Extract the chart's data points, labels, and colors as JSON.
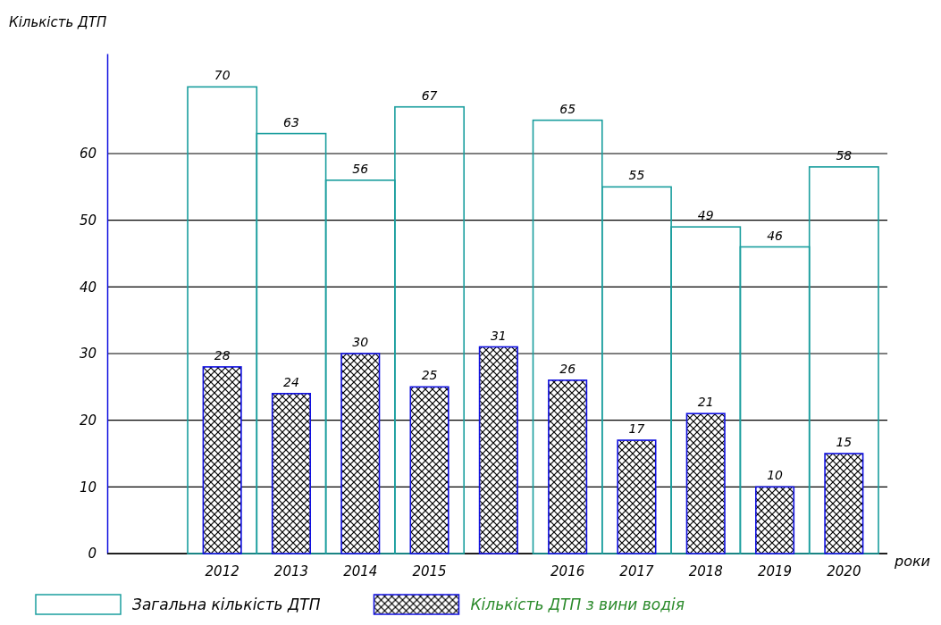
{
  "chart_data": {
    "type": "bar",
    "xlabel": "роки",
    "ylabel": "Кількість ДТП",
    "categories": [
      "2012",
      "2013",
      "2014",
      "2015",
      null,
      "2016",
      "2017",
      "2018",
      "2019",
      "2020"
    ],
    "series": [
      {
        "name": "Загальна кількість ДТП",
        "color": "#1a9e9e",
        "values": [
          70,
          63,
          56,
          67,
          null,
          65,
          55,
          49,
          46,
          58
        ]
      },
      {
        "name": "Кількість ДТП з вини водія",
        "color": "#1010e0",
        "values": [
          28,
          24,
          30,
          25,
          31,
          26,
          17,
          21,
          10,
          15
        ]
      }
    ],
    "ylim": [
      0,
      75
    ],
    "yticks": [
      0,
      10,
      20,
      30,
      40,
      50,
      60
    ],
    "grid": "y",
    "legend": "bottom",
    "data_labels": true
  }
}
